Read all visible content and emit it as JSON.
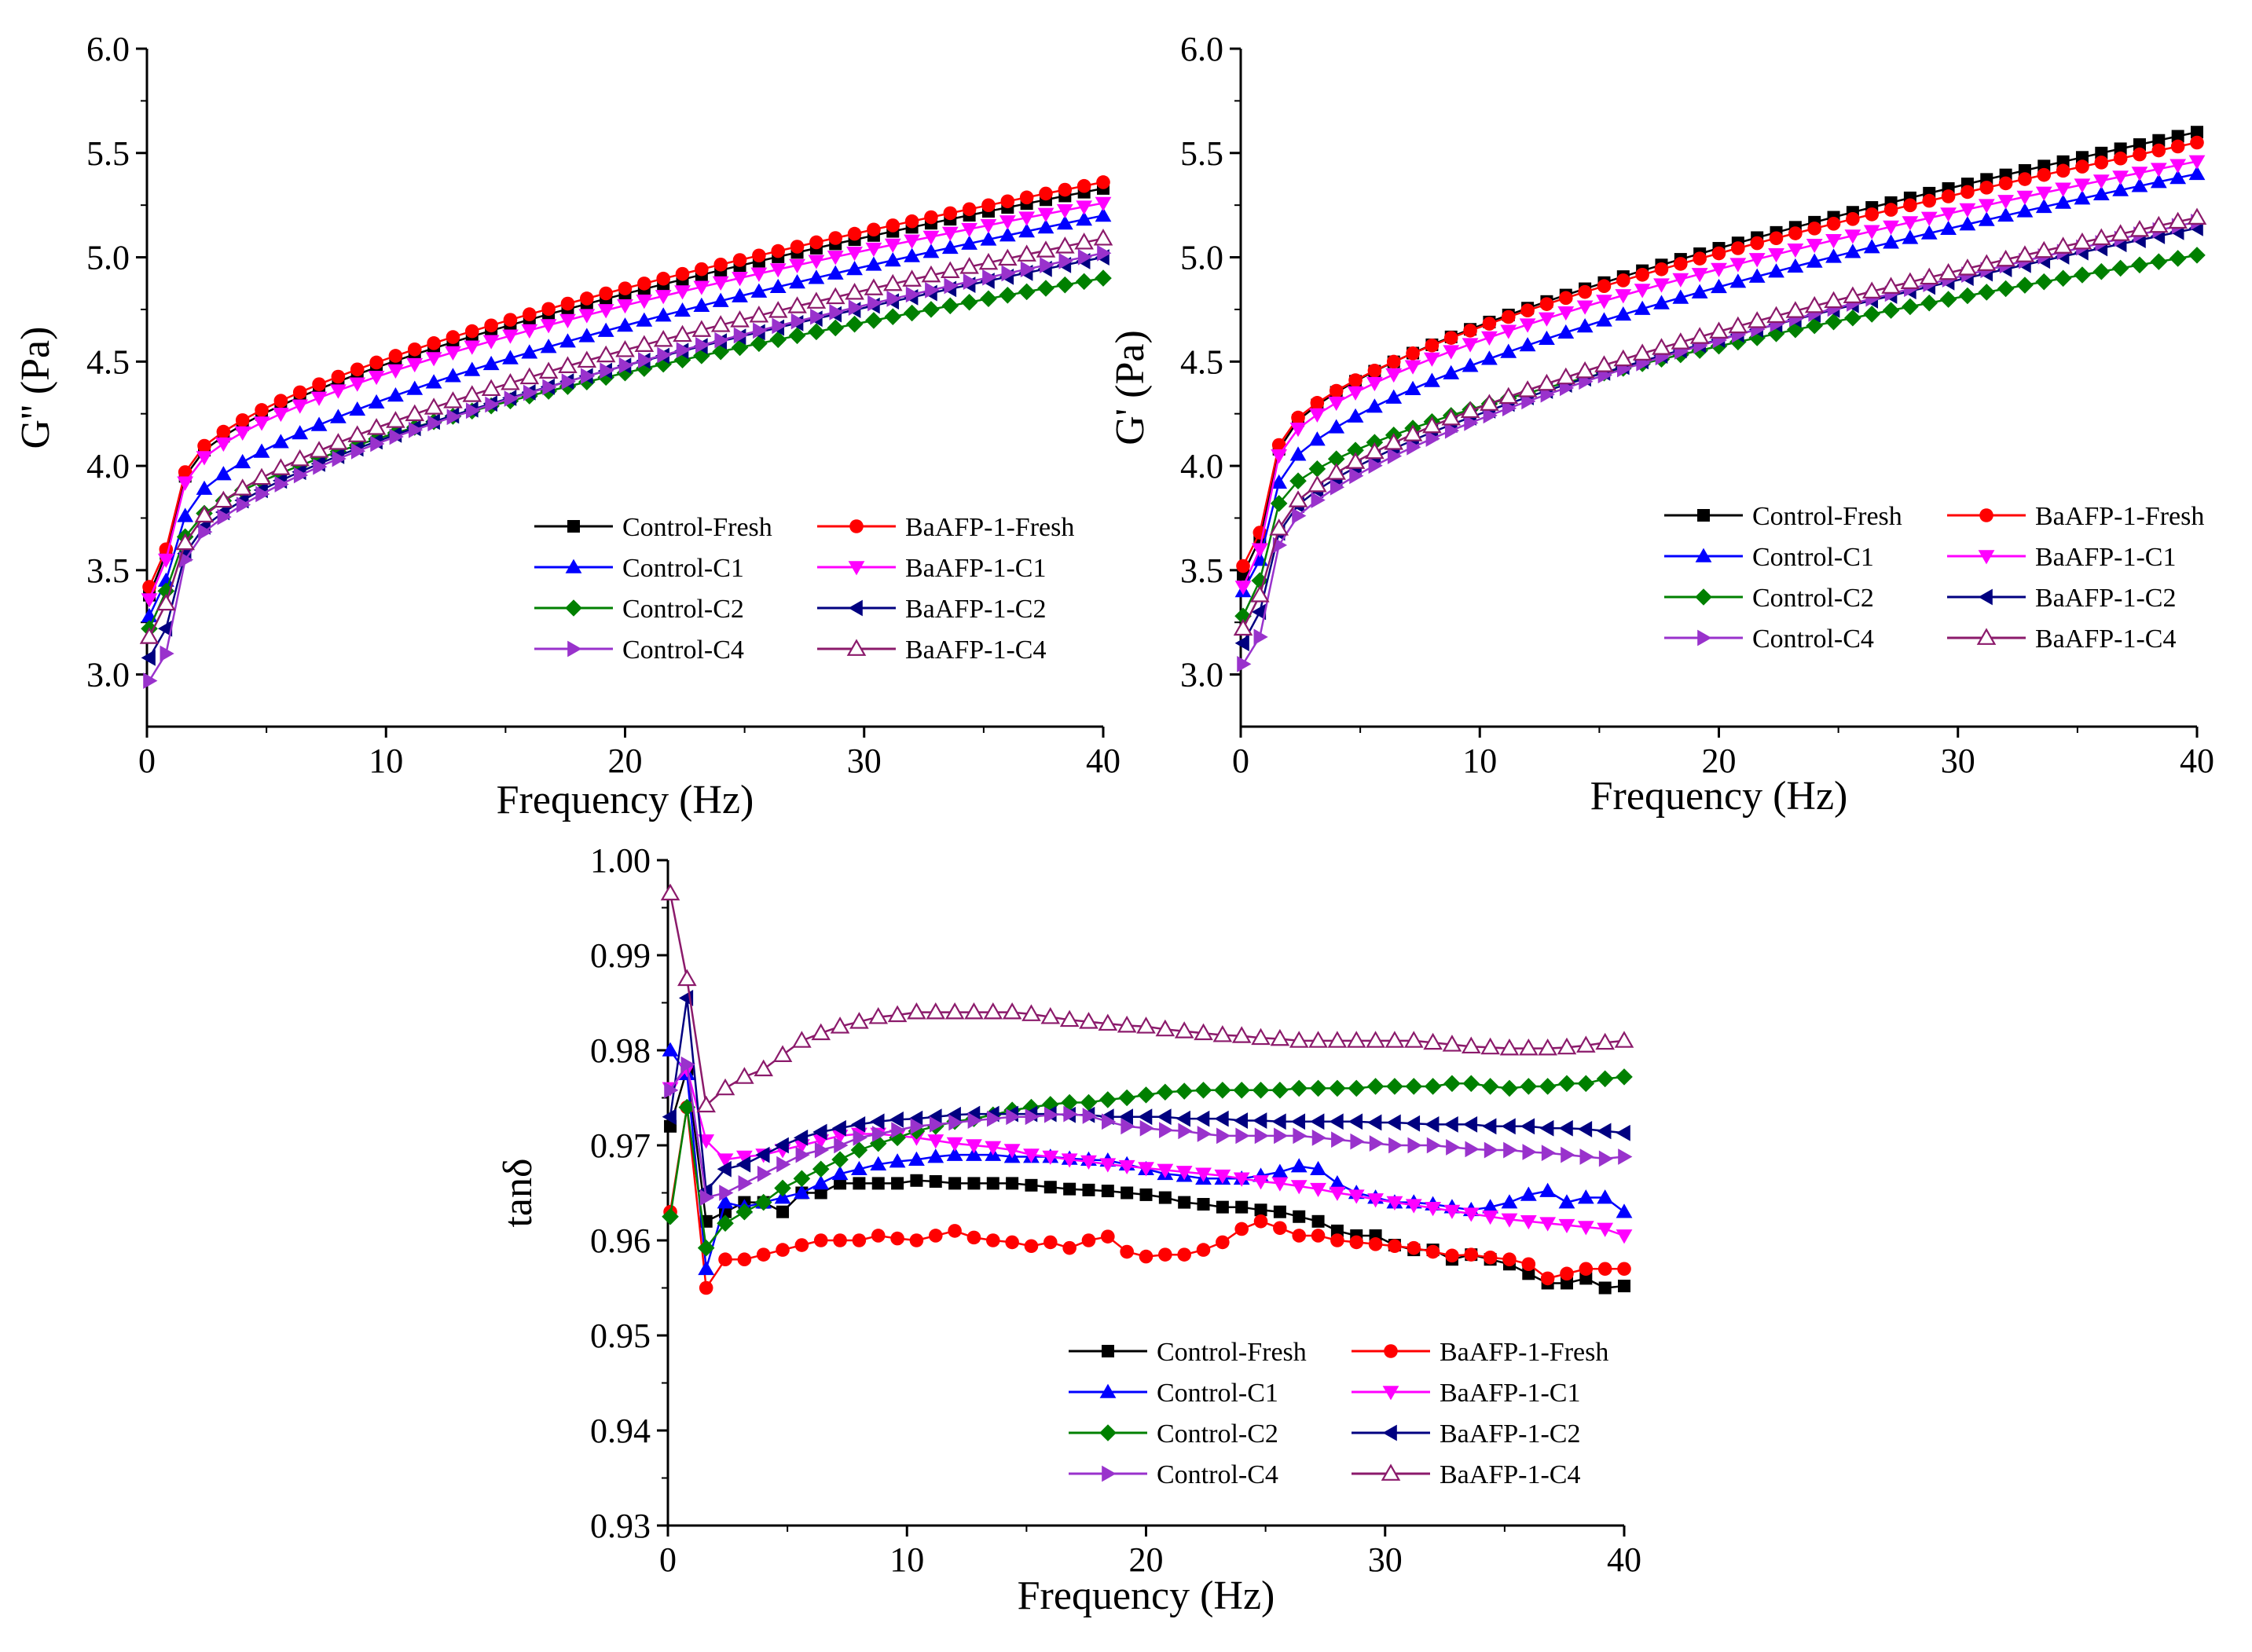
{
  "chart_data": [
    {
      "id": "gpp",
      "type": "line",
      "xlabel": "Frequency (Hz)",
      "ylabel": "G'' (Pa)",
      "xlim": [
        0,
        40
      ],
      "ylim": [
        2.75,
        6.0
      ],
      "xticks": [
        0,
        10,
        20,
        30,
        40
      ],
      "yticks": [
        3.0,
        3.5,
        4.0,
        4.5,
        5.0,
        5.5,
        6.0
      ],
      "ytick_decimals": 1,
      "grid": false,
      "legend_position": "bottom-right",
      "x": [
        0.1,
        0.8,
        1.6,
        2.4,
        3.2,
        4.0,
        4.8,
        5.6,
        6.4,
        7.2,
        8.0,
        8.8,
        9.6,
        10.4,
        11.2,
        12.0,
        12.8,
        13.6,
        14.4,
        15.2,
        16.0,
        16.8,
        17.6,
        18.4,
        19.2,
        20.0,
        20.8,
        21.6,
        22.4,
        23.2,
        24.0,
        24.8,
        25.6,
        26.4,
        27.2,
        28.0,
        28.8,
        29.6,
        30.4,
        31.2,
        32.0,
        32.8,
        33.6,
        34.4,
        35.2,
        36.0,
        36.8,
        37.6,
        38.4,
        39.2,
        40.0
      ],
      "series": [
        {
          "name": "Control-Fresh",
          "marker": "square",
          "color": "#000000",
          "start": 3.38,
          "kink": 3.58,
          "v16": 3.95,
          "end": 5.33
        },
        {
          "name": "BaAFP-1-Fresh",
          "marker": "circle",
          "color": "#ff0000",
          "start": 3.42,
          "kink": 3.6,
          "v16": 3.97,
          "end": 5.36
        },
        {
          "name": "Control-C1",
          "marker": "triangle-up",
          "color": "#0000ff",
          "start": 3.28,
          "kink": 3.45,
          "v16": 3.76,
          "end": 5.2
        },
        {
          "name": "BaAFP-1-C1",
          "marker": "triangle-down",
          "color": "#ff00ff",
          "start": 3.36,
          "kink": 3.55,
          "v16": 3.92,
          "end": 5.26
        },
        {
          "name": "Control-C2",
          "marker": "diamond",
          "color": "#008000",
          "start": 3.22,
          "kink": 3.4,
          "v16": 3.66,
          "end": 4.9
        },
        {
          "name": "BaAFP-1-C2",
          "marker": "triangle-left",
          "color": "#000080",
          "start": 3.08,
          "kink": 3.22,
          "v16": 3.58,
          "end": 5.0
        },
        {
          "name": "Control-C4",
          "marker": "triangle-right",
          "color": "#9932cc",
          "start": 2.97,
          "kink": 3.1,
          "v16": 3.55,
          "end": 5.02
        },
        {
          "name": "BaAFP-1-C4",
          "marker": "triangle-up-open",
          "color": "#8b1a6b",
          "start": 3.18,
          "kink": 3.34,
          "v16": 3.63,
          "end": 5.09
        }
      ]
    },
    {
      "id": "gp",
      "type": "line",
      "xlabel": "Frequency (Hz)",
      "ylabel": "G' (Pa)",
      "xlim": [
        0,
        40
      ],
      "ylim": [
        2.75,
        6.0
      ],
      "xticks": [
        0,
        10,
        20,
        30,
        40
      ],
      "yticks": [
        3.0,
        3.5,
        4.0,
        4.5,
        5.0,
        5.5,
        6.0
      ],
      "ytick_decimals": 1,
      "grid": false,
      "legend_position": "bottom-right",
      "x": [
        0.1,
        0.8,
        1.6,
        2.4,
        3.2,
        4.0,
        4.8,
        5.6,
        6.4,
        7.2,
        8.0,
        8.8,
        9.6,
        10.4,
        11.2,
        12.0,
        12.8,
        13.6,
        14.4,
        15.2,
        16.0,
        16.8,
        17.6,
        18.4,
        19.2,
        20.0,
        20.8,
        21.6,
        22.4,
        23.2,
        24.0,
        24.8,
        25.6,
        26.4,
        27.2,
        28.0,
        28.8,
        29.6,
        30.4,
        31.2,
        32.0,
        32.8,
        33.6,
        34.4,
        35.2,
        36.0,
        36.8,
        37.6,
        38.4,
        39.2,
        40.0
      ],
      "series": [
        {
          "name": "Control-Fresh",
          "marker": "square",
          "color": "#000000",
          "start": 3.48,
          "kink": 3.65,
          "v16": 4.08,
          "end": 5.6
        },
        {
          "name": "BaAFP-1-Fresh",
          "marker": "circle",
          "color": "#ff0000",
          "start": 3.52,
          "kink": 3.68,
          "v16": 4.1,
          "end": 5.55
        },
        {
          "name": "Control-C1",
          "marker": "triangle-up",
          "color": "#0000ff",
          "start": 3.4,
          "kink": 3.55,
          "v16": 3.92,
          "end": 5.4
        },
        {
          "name": "BaAFP-1-C1",
          "marker": "triangle-down",
          "color": "#ff00ff",
          "start": 3.42,
          "kink": 3.6,
          "v16": 4.05,
          "end": 5.46
        },
        {
          "name": "Control-C2",
          "marker": "diamond",
          "color": "#008000",
          "start": 3.28,
          "kink": 3.45,
          "v16": 3.82,
          "end": 5.01
        },
        {
          "name": "BaAFP-1-C2",
          "marker": "triangle-left",
          "color": "#000080",
          "start": 3.15,
          "kink": 3.3,
          "v16": 3.68,
          "end": 5.14
        },
        {
          "name": "Control-C4",
          "marker": "triangle-right",
          "color": "#9932cc",
          "start": 3.05,
          "kink": 3.18,
          "v16": 3.62,
          "end": 5.17
        },
        {
          "name": "BaAFP-1-C4",
          "marker": "triangle-up-open",
          "color": "#8b1a6b",
          "start": 3.22,
          "kink": 3.38,
          "v16": 3.7,
          "end": 5.19
        }
      ]
    },
    {
      "id": "tand",
      "type": "line",
      "xlabel": "Frequency (Hz)",
      "ylabel": "tanδ",
      "xlim": [
        0,
        40
      ],
      "ylim": [
        0.93,
        1.0
      ],
      "xticks": [
        0,
        10,
        20,
        30,
        40
      ],
      "yticks": [
        0.93,
        0.94,
        0.95,
        0.96,
        0.97,
        0.98,
        0.99,
        1.0
      ],
      "ytick_decimals": 2,
      "grid": false,
      "legend_position": "bottom-right",
      "x": [
        0.1,
        0.8,
        1.6,
        2.4,
        3.2,
        4.0,
        4.8,
        5.6,
        6.4,
        7.2,
        8.0,
        8.8,
        9.6,
        10.4,
        11.2,
        12.0,
        12.8,
        13.6,
        14.4,
        15.2,
        16.0,
        16.8,
        17.6,
        18.4,
        19.2,
        20.0,
        20.8,
        21.6,
        22.4,
        23.2,
        24.0,
        24.8,
        25.6,
        26.4,
        27.2,
        28.0,
        28.8,
        29.6,
        30.4,
        31.2,
        32.0,
        32.8,
        33.6,
        34.4,
        35.2,
        36.0,
        36.8,
        37.6,
        38.4,
        39.2,
        40.0
      ],
      "series": [
        {
          "name": "Control-Fresh",
          "marker": "square",
          "color": "#000000",
          "values": [
            0.972,
            0.978,
            0.962,
            0.963,
            0.964,
            0.964,
            0.963,
            0.965,
            0.965,
            0.966,
            0.966,
            0.966,
            0.966,
            0.9663,
            0.9662,
            0.966,
            0.966,
            0.966,
            0.966,
            0.9658,
            0.9656,
            0.9654,
            0.9653,
            0.9652,
            0.965,
            0.9648,
            0.9645,
            0.964,
            0.9638,
            0.9635,
            0.9635,
            0.9632,
            0.963,
            0.9625,
            0.962,
            0.961,
            0.9605,
            0.9605,
            0.9595,
            0.959,
            0.959,
            0.958,
            0.9585,
            0.958,
            0.9575,
            0.9565,
            0.9555,
            0.9555,
            0.956,
            0.955,
            0.9552
          ]
        },
        {
          "name": "BaAFP-1-Fresh",
          "marker": "circle",
          "color": "#ff0000",
          "values": [
            0.963,
            0.974,
            0.955,
            0.958,
            0.958,
            0.9585,
            0.959,
            0.9595,
            0.96,
            0.96,
            0.96,
            0.9605,
            0.9602,
            0.96,
            0.9605,
            0.961,
            0.9603,
            0.96,
            0.9598,
            0.9594,
            0.9598,
            0.9592,
            0.96,
            0.9604,
            0.9588,
            0.9583,
            0.9585,
            0.9585,
            0.959,
            0.9598,
            0.9612,
            0.962,
            0.9613,
            0.9605,
            0.9605,
            0.96,
            0.9598,
            0.9596,
            0.9594,
            0.9592,
            0.9588,
            0.9584,
            0.9585,
            0.9582,
            0.958,
            0.9575,
            0.956,
            0.9565,
            0.957,
            0.957,
            0.957
          ]
        },
        {
          "name": "Control-C1",
          "marker": "triangle-up",
          "color": "#0000ff",
          "values": [
            0.98,
            0.9775,
            0.957,
            0.964,
            0.9635,
            0.964,
            0.9645,
            0.965,
            0.966,
            0.967,
            0.9675,
            0.968,
            0.9683,
            0.9685,
            0.9688,
            0.969,
            0.969,
            0.969,
            0.9688,
            0.9688,
            0.9688,
            0.9686,
            0.9685,
            0.9684,
            0.968,
            0.9675,
            0.967,
            0.9668,
            0.9665,
            0.9665,
            0.9665,
            0.9668,
            0.9672,
            0.9678,
            0.9675,
            0.966,
            0.965,
            0.9645,
            0.964,
            0.964,
            0.9638,
            0.9635,
            0.9632,
            0.9635,
            0.964,
            0.9648,
            0.9652,
            0.964,
            0.9645,
            0.9645,
            0.963
          ]
        },
        {
          "name": "BaAFP-1-C1",
          "marker": "triangle-down",
          "color": "#ff00ff",
          "values": [
            0.976,
            0.978,
            0.9705,
            0.9685,
            0.9688,
            0.969,
            0.9695,
            0.97,
            0.9705,
            0.971,
            0.9712,
            0.9712,
            0.971,
            0.9708,
            0.9705,
            0.9702,
            0.97,
            0.9698,
            0.9695,
            0.969,
            0.9688,
            0.9685,
            0.9683,
            0.968,
            0.9678,
            0.9676,
            0.9674,
            0.9672,
            0.967,
            0.9668,
            0.9665,
            0.9662,
            0.966,
            0.9657,
            0.9654,
            0.965,
            0.9647,
            0.9643,
            0.964,
            0.9637,
            0.9634,
            0.9631,
            0.9628,
            0.9625,
            0.9622,
            0.962,
            0.9618,
            0.9616,
            0.9614,
            0.9612,
            0.9605
          ]
        },
        {
          "name": "Control-C2",
          "marker": "diamond",
          "color": "#008000",
          "values": [
            0.9625,
            0.974,
            0.9592,
            0.9618,
            0.963,
            0.964,
            0.9655,
            0.9665,
            0.9675,
            0.9685,
            0.9695,
            0.9702,
            0.9708,
            0.9715,
            0.972,
            0.9725,
            0.9728,
            0.9732,
            0.9737,
            0.974,
            0.9743,
            0.9745,
            0.9745,
            0.9748,
            0.975,
            0.9753,
            0.9756,
            0.9757,
            0.9758,
            0.9758,
            0.9758,
            0.9758,
            0.9758,
            0.976,
            0.976,
            0.976,
            0.976,
            0.9762,
            0.9762,
            0.9762,
            0.9762,
            0.9765,
            0.9765,
            0.9762,
            0.976,
            0.9762,
            0.9762,
            0.9765,
            0.9765,
            0.977,
            0.9772
          ]
        },
        {
          "name": "BaAFP-1-C2",
          "marker": "triangle-left",
          "color": "#000080",
          "values": [
            0.973,
            0.9855,
            0.9652,
            0.9675,
            0.968,
            0.969,
            0.97,
            0.9708,
            0.9714,
            0.9718,
            0.9722,
            0.9725,
            0.9727,
            0.9728,
            0.973,
            0.9732,
            0.9733,
            0.9733,
            0.9733,
            0.9733,
            0.9733,
            0.9732,
            0.9732,
            0.973,
            0.973,
            0.973,
            0.973,
            0.9728,
            0.9728,
            0.9728,
            0.9726,
            0.9726,
            0.9725,
            0.9725,
            0.9725,
            0.9725,
            0.9725,
            0.9724,
            0.9724,
            0.9723,
            0.9722,
            0.9722,
            0.9722,
            0.972,
            0.972,
            0.972,
            0.9718,
            0.9718,
            0.9717,
            0.9715,
            0.9713
          ]
        },
        {
          "name": "Control-C4",
          "marker": "triangle-right",
          "color": "#9932cc",
          "values": [
            0.9758,
            0.9785,
            0.9645,
            0.965,
            0.966,
            0.967,
            0.968,
            0.969,
            0.9695,
            0.97,
            0.9708,
            0.9712,
            0.9716,
            0.972,
            0.9722,
            0.9724,
            0.9726,
            0.9728,
            0.973,
            0.973,
            0.9732,
            0.9733,
            0.9731,
            0.9725,
            0.972,
            0.9718,
            0.9716,
            0.9715,
            0.9712,
            0.971,
            0.971,
            0.971,
            0.971,
            0.971,
            0.9708,
            0.9706,
            0.9704,
            0.9702,
            0.97,
            0.97,
            0.97,
            0.9698,
            0.9696,
            0.9695,
            0.9695,
            0.9693,
            0.9692,
            0.969,
            0.9688,
            0.9686,
            0.9688
          ]
        },
        {
          "name": "BaAFP-1-C4",
          "marker": "triangle-up-open",
          "color": "#8b1a6b",
          "values": [
            0.9965,
            0.9875,
            0.9742,
            0.976,
            0.9772,
            0.978,
            0.9795,
            0.981,
            0.9818,
            0.9825,
            0.983,
            0.9835,
            0.9837,
            0.984,
            0.984,
            0.984,
            0.984,
            0.984,
            0.984,
            0.9838,
            0.9835,
            0.9832,
            0.983,
            0.9828,
            0.9826,
            0.9825,
            0.9822,
            0.982,
            0.9818,
            0.9816,
            0.9815,
            0.9813,
            0.9812,
            0.981,
            0.981,
            0.981,
            0.981,
            0.981,
            0.981,
            0.981,
            0.9808,
            0.9806,
            0.9804,
            0.9803,
            0.9802,
            0.9802,
            0.9802,
            0.9803,
            0.9805,
            0.9808,
            0.981
          ]
        }
      ]
    }
  ]
}
